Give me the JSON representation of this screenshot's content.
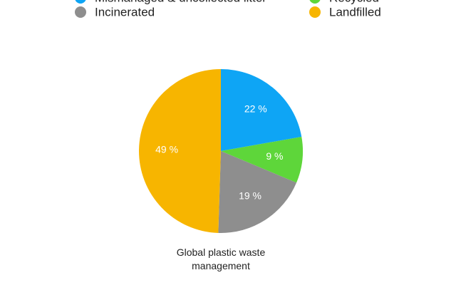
{
  "chart_data": {
    "type": "pie",
    "title": "Global plastic waste management",
    "categories": [
      "Mismanaged & uncollected litter",
      "Recycled",
      "Incinerated",
      "Landfilled"
    ],
    "values": [
      22,
      9,
      19,
      49
    ],
    "value_labels": [
      "22 %",
      "9 %",
      "19 %",
      "49 %"
    ],
    "colors": [
      "#0ea5f5",
      "#5ed63a",
      "#8e8e8e",
      "#f7b500"
    ],
    "legend": "top"
  }
}
